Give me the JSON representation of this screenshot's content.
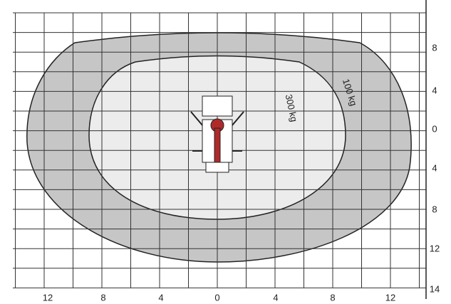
{
  "diagram": {
    "bottom_axis_labels": [
      "12",
      "8",
      "4",
      "0",
      "4",
      "8",
      "12"
    ],
    "right_axis_labels": [
      "8",
      "4",
      "0",
      "4",
      "8",
      "12",
      "14"
    ],
    "zones": [
      {
        "label": "100 kg"
      },
      {
        "label": "300 kg"
      }
    ]
  }
}
